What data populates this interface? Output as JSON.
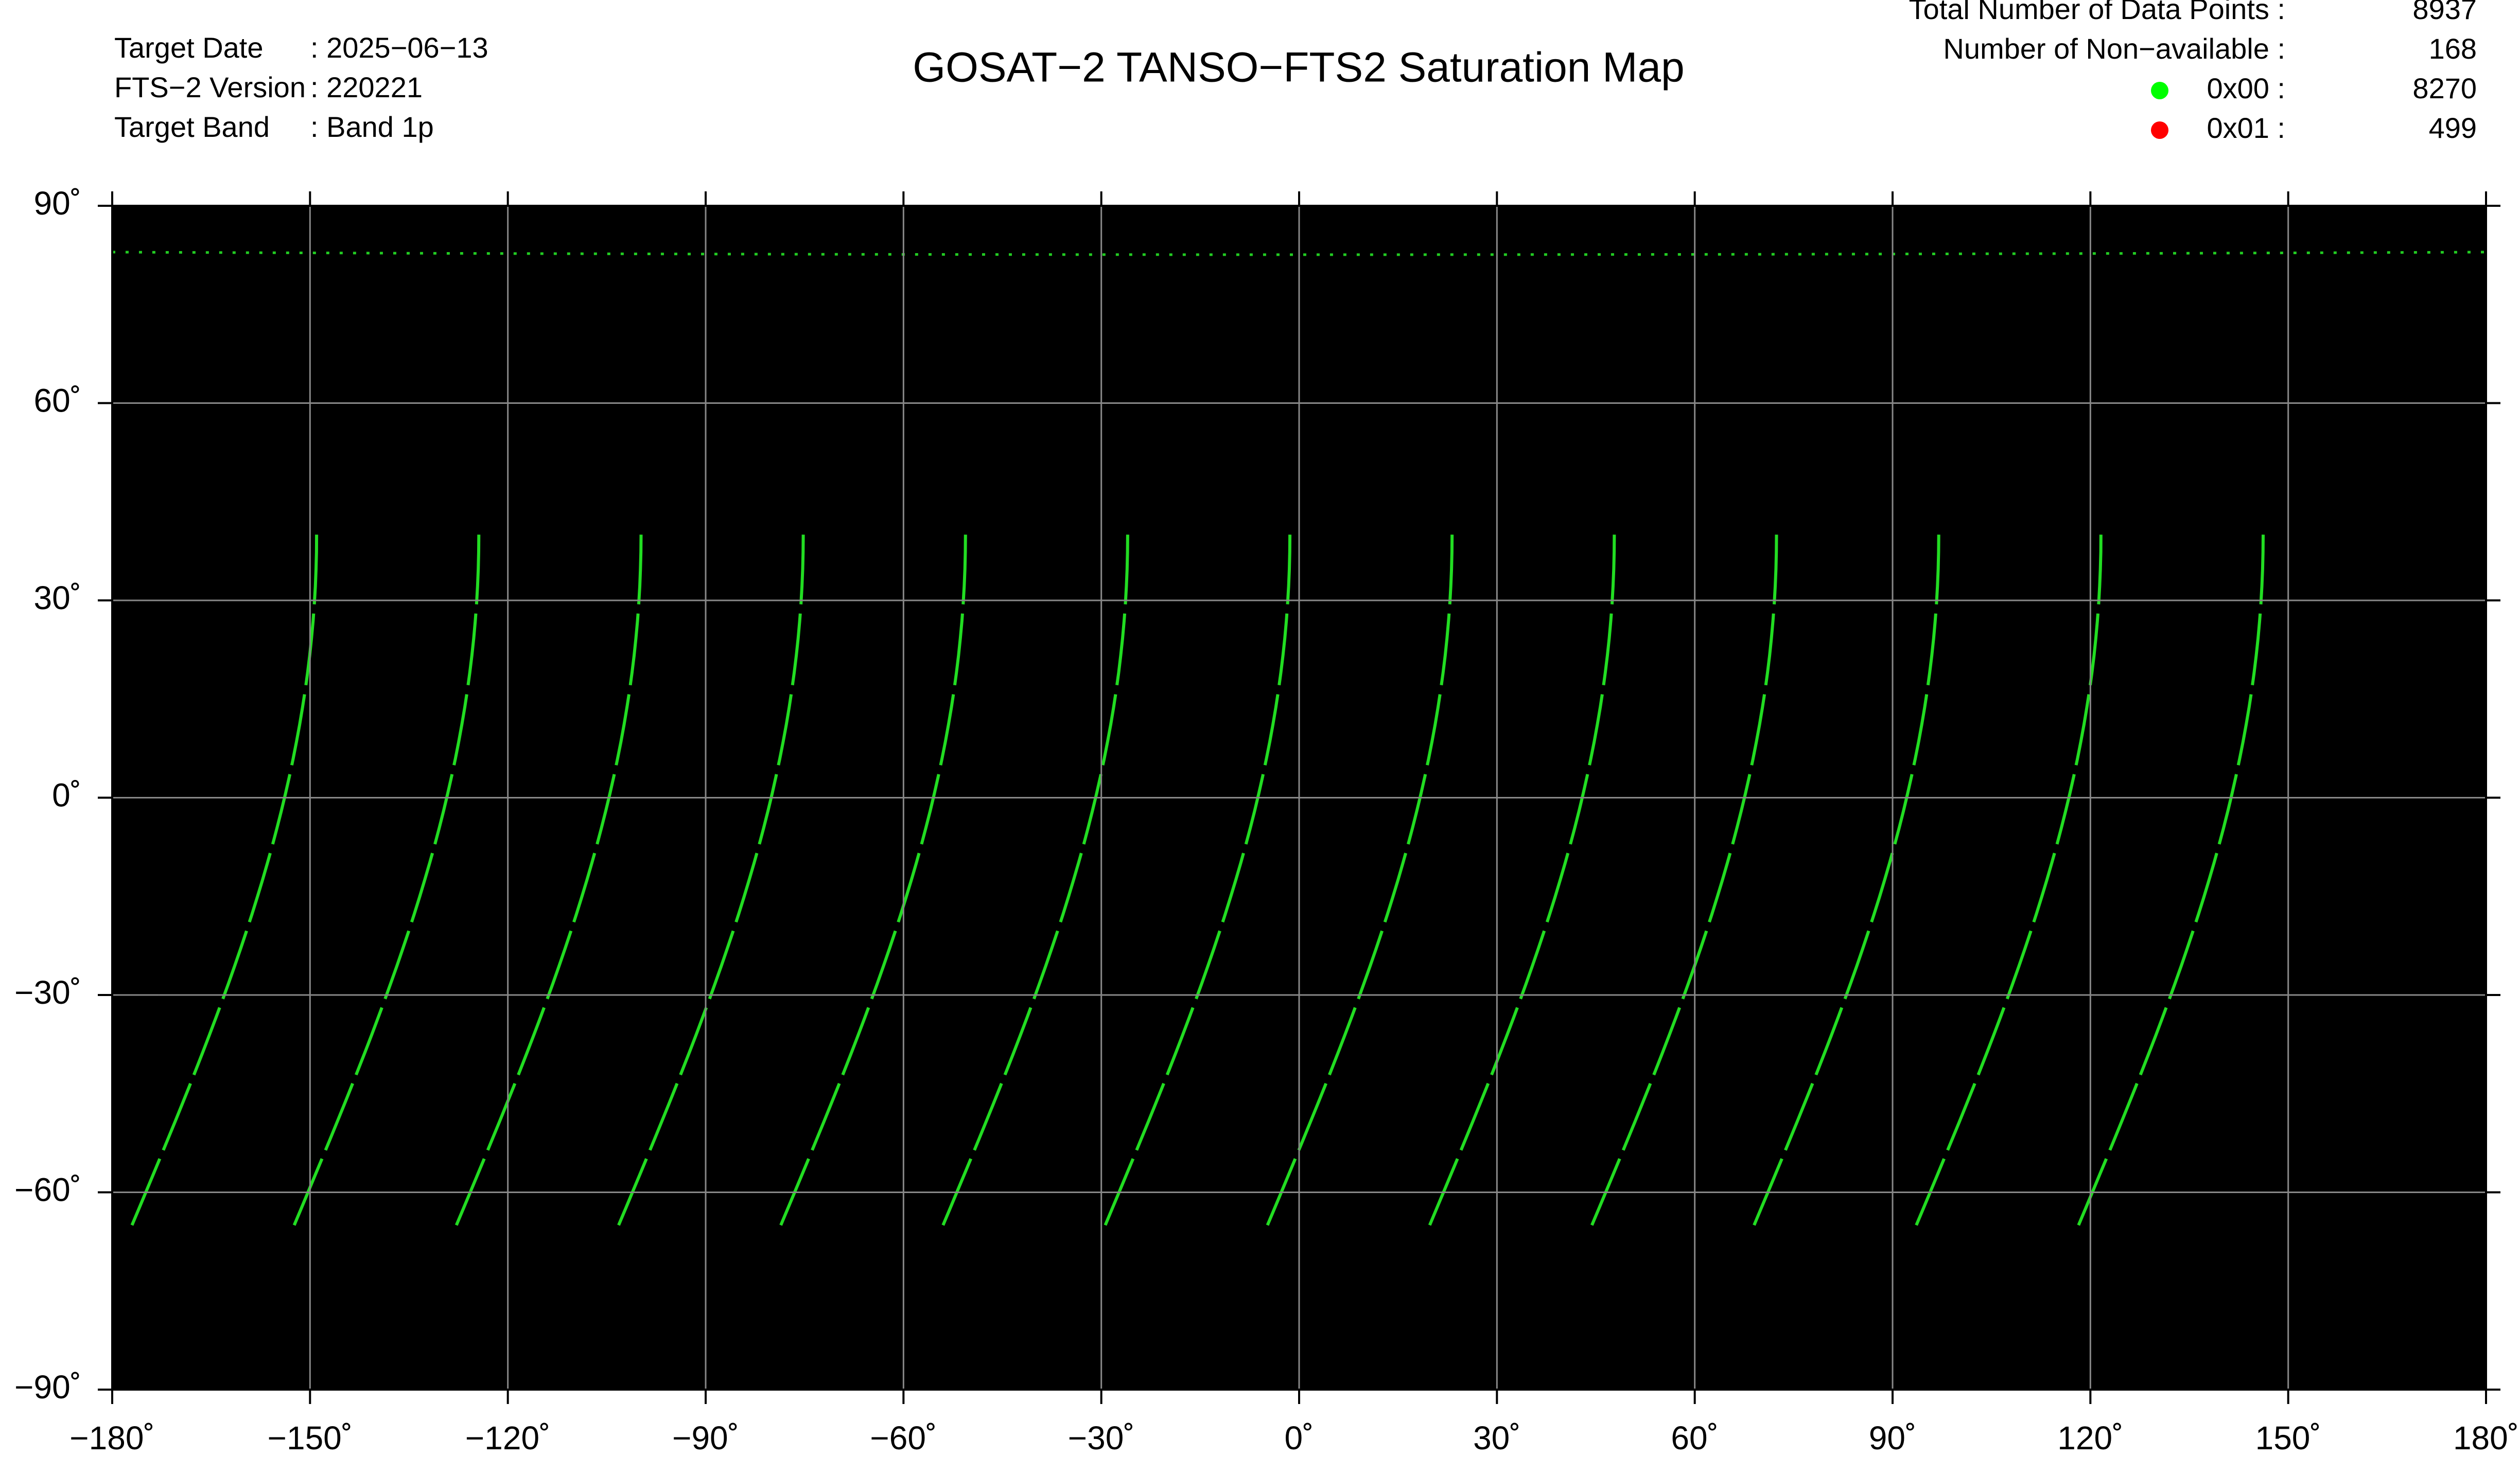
{
  "header": {
    "title": "GOSAT−2 TANSO−FTS2 Saturation Map",
    "info": [
      {
        "label": "Target Date",
        "value": ": 2025−06−13"
      },
      {
        "label": "FTS−2 Version",
        "value": ": 220221"
      },
      {
        "label": "Target Band",
        "value": ": Band 1p"
      }
    ]
  },
  "stats": [
    {
      "label": "Total Number of Data Points :",
      "value": 8937
    },
    {
      "label": "Number of Non−available :",
      "value": 168
    },
    {
      "label": "0x00 :",
      "value": 8270,
      "color": "#00ff00"
    },
    {
      "label": "0x01 :",
      "value": 499,
      "color": "#ff0000"
    }
  ],
  "map": {
    "xlim": [
      -180,
      180
    ],
    "ylim": [
      -90,
      90
    ],
    "grid": true,
    "xticks": [
      {
        "value": -180,
        "label": "−180˚"
      },
      {
        "value": -150,
        "label": "−150˚"
      },
      {
        "value": -120,
        "label": "−120˚"
      },
      {
        "value": -90,
        "label": "−90˚"
      },
      {
        "value": -60,
        "label": "−60˚"
      },
      {
        "value": -30,
        "label": "−30˚"
      },
      {
        "value": 0,
        "label": "0˚"
      },
      {
        "value": 30,
        "label": "30˚"
      },
      {
        "value": 60,
        "label": "60˚"
      },
      {
        "value": 90,
        "label": "90˚"
      },
      {
        "value": 120,
        "label": "120˚"
      },
      {
        "value": 150,
        "label": "150˚"
      },
      {
        "value": 180,
        "label": "180˚"
      }
    ],
    "yticks": [
      {
        "value": 90,
        "label": "90˚"
      },
      {
        "value": 60,
        "label": "60˚"
      },
      {
        "value": 30,
        "label": "30˚"
      },
      {
        "value": 0,
        "label": "0˚"
      },
      {
        "value": -30,
        "label": "−30˚"
      },
      {
        "value": -60,
        "label": "−60˚"
      },
      {
        "value": -90,
        "label": "−90˚"
      }
    ]
  }
}
